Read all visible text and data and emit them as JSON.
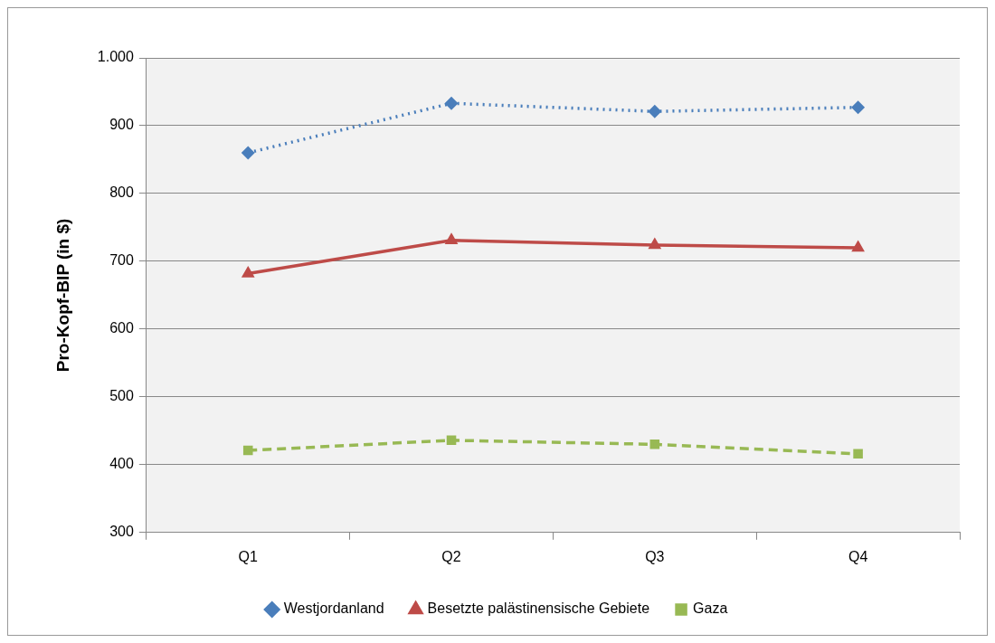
{
  "chart_data": {
    "type": "line",
    "ylabel": "Pro-Kopf-BIP (in $)",
    "categories": [
      "Q1",
      "Q2",
      "Q3",
      "Q4"
    ],
    "series": [
      {
        "name": "Westjordanland",
        "color": "#4a7ebb",
        "values": [
          860,
          933,
          921,
          927
        ],
        "marker": "diamond",
        "line_style": "dotted"
      },
      {
        "name": "Besetzte palästinensische Gebiete",
        "color": "#be4b48",
        "values": [
          682,
          731,
          724,
          720
        ],
        "marker": "triangle",
        "line_style": "solid"
      },
      {
        "name": "Gaza",
        "color": "#98b954",
        "values": [
          421,
          436,
          430,
          416
        ],
        "marker": "square",
        "line_style": "dashed"
      }
    ],
    "ylim": [
      300,
      1000
    ],
    "yticks": [
      300,
      400,
      500,
      600,
      700,
      800,
      900,
      {
        "value": 1000,
        "label": "1.000"
      }
    ],
    "grid": "y",
    "legend": "bottom"
  }
}
